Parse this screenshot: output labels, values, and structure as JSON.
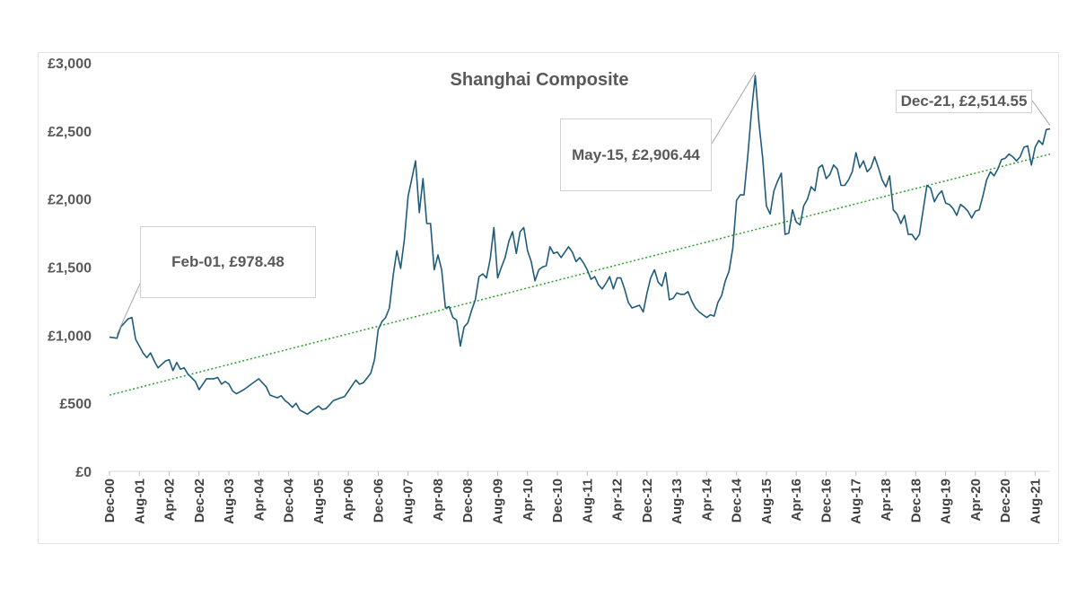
{
  "chart_data": {
    "type": "line",
    "title": "Shanghai Composite",
    "xlabel": "",
    "ylabel": "",
    "ylim": [
      0,
      3000
    ],
    "y_ticks": [
      "£0",
      "£500",
      "£1,000",
      "£1,500",
      "£2,000",
      "£2,500",
      "£3,000"
    ],
    "x_ticks": [
      "Dec-00",
      "Aug-01",
      "Apr-02",
      "Dec-02",
      "Aug-03",
      "Apr-04",
      "Dec-04",
      "Aug-05",
      "Apr-06",
      "Dec-06",
      "Aug-07",
      "Apr-08",
      "Dec-08",
      "Aug-09",
      "Apr-10",
      "Dec-10",
      "Aug-11",
      "Apr-12",
      "Dec-12",
      "Aug-13",
      "Apr-14",
      "Dec-14",
      "Aug-15",
      "Apr-16",
      "Dec-16",
      "Aug-17",
      "Apr-18",
      "Dec-18",
      "Aug-19",
      "Apr-20",
      "Dec-20",
      "Aug-21"
    ],
    "grid": false,
    "legend": "none",
    "series_color": "#1f5c7a",
    "trend_color": "#2ca02c",
    "trendline": {
      "start_value": 560,
      "end_value": 2330,
      "style": "dotted"
    },
    "x_start": "Dec-00",
    "x_end": "Dec-21",
    "anchors": [
      [
        "Dec-00",
        985
      ],
      [
        "Feb-01",
        978
      ],
      [
        "Mar-01",
        1060
      ],
      [
        "May-01",
        1120
      ],
      [
        "Jun-01",
        1130
      ],
      [
        "Jul-01",
        970
      ],
      [
        "Sep-01",
        870
      ],
      [
        "Oct-01",
        835
      ],
      [
        "Nov-01",
        870
      ],
      [
        "Dec-01",
        810
      ],
      [
        "Jan-02",
        760
      ],
      [
        "Mar-02",
        810
      ],
      [
        "Apr-02",
        820
      ],
      [
        "May-02",
        740
      ],
      [
        "Jun-02",
        800
      ],
      [
        "Jul-02",
        750
      ],
      [
        "Aug-02",
        760
      ],
      [
        "Sep-02",
        715
      ],
      [
        "Nov-02",
        660
      ],
      [
        "Dec-02",
        600
      ],
      [
        "Feb-03",
        680
      ],
      [
        "Apr-03",
        680
      ],
      [
        "May-03",
        690
      ],
      [
        "Jun-03",
        640
      ],
      [
        "Jul-03",
        660
      ],
      [
        "Aug-03",
        640
      ],
      [
        "Sep-03",
        590
      ],
      [
        "Oct-03",
        570
      ],
      [
        "Dec-03",
        600
      ],
      [
        "Apr-04",
        680
      ],
      [
        "Jun-04",
        620
      ],
      [
        "Jul-04",
        560
      ],
      [
        "Sep-04",
        540
      ],
      [
        "Oct-04",
        555
      ],
      [
        "Nov-04",
        520
      ],
      [
        "Dec-04",
        500
      ],
      [
        "Jan-05",
        470
      ],
      [
        "Feb-05",
        500
      ],
      [
        "Mar-05",
        450
      ],
      [
        "May-05",
        420
      ],
      [
        "Jun-05",
        440
      ],
      [
        "Aug-05",
        480
      ],
      [
        "Sep-05",
        455
      ],
      [
        "Oct-05",
        460
      ],
      [
        "Dec-05",
        520
      ],
      [
        "Mar-06",
        550
      ],
      [
        "Apr-06",
        590
      ],
      [
        "Jun-06",
        670
      ],
      [
        "Jul-06",
        640
      ],
      [
        "Aug-06",
        650
      ],
      [
        "Oct-06",
        720
      ],
      [
        "Nov-06",
        820
      ],
      [
        "Dec-06",
        1040
      ],
      [
        "Jan-07",
        1100
      ],
      [
        "Feb-07",
        1130
      ],
      [
        "Mar-07",
        1200
      ],
      [
        "Apr-07",
        1440
      ],
      [
        "May-07",
        1620
      ],
      [
        "Jun-07",
        1490
      ],
      [
        "Jul-07",
        1700
      ],
      [
        "Aug-07",
        2020
      ],
      [
        "Sep-07",
        2150
      ],
      [
        "Oct-07",
        2280
      ],
      [
        "Nov-07",
        1900
      ],
      [
        "Dec-07",
        2150
      ],
      [
        "Jan-08",
        1820
      ],
      [
        "Feb-08",
        1820
      ],
      [
        "Mar-08",
        1480
      ],
      [
        "Apr-08",
        1590
      ],
      [
        "May-08",
        1480
      ],
      [
        "Jun-08",
        1200
      ],
      [
        "Jul-08",
        1210
      ],
      [
        "Aug-08",
        1130
      ],
      [
        "Sep-08",
        1110
      ],
      [
        "Oct-08",
        920
      ],
      [
        "Nov-08",
        1060
      ],
      [
        "Dec-08",
        1090
      ],
      [
        "Jan-09",
        1180
      ],
      [
        "Feb-09",
        1260
      ],
      [
        "Mar-09",
        1430
      ],
      [
        "Apr-09",
        1450
      ],
      [
        "May-09",
        1420
      ],
      [
        "Jun-09",
        1560
      ],
      [
        "Jul-09",
        1790
      ],
      [
        "Aug-09",
        1420
      ],
      [
        "Sep-09",
        1500
      ],
      [
        "Oct-09",
        1570
      ],
      [
        "Nov-09",
        1690
      ],
      [
        "Dec-09",
        1760
      ],
      [
        "Jan-10",
        1600
      ],
      [
        "Feb-10",
        1760
      ],
      [
        "Mar-10",
        1790
      ],
      [
        "Apr-10",
        1620
      ],
      [
        "May-10",
        1540
      ],
      [
        "Jun-10",
        1400
      ],
      [
        "Jul-10",
        1480
      ],
      [
        "Aug-10",
        1500
      ],
      [
        "Sep-10",
        1510
      ],
      [
        "Oct-10",
        1650
      ],
      [
        "Nov-10",
        1600
      ],
      [
        "Dec-10",
        1610
      ],
      [
        "Jan-11",
        1570
      ],
      [
        "Feb-11",
        1610
      ],
      [
        "Mar-11",
        1650
      ],
      [
        "Apr-11",
        1610
      ],
      [
        "May-11",
        1540
      ],
      [
        "Jun-11",
        1570
      ],
      [
        "Jul-11",
        1530
      ],
      [
        "Aug-11",
        1480
      ],
      [
        "Sep-11",
        1410
      ],
      [
        "Oct-11",
        1430
      ],
      [
        "Nov-11",
        1370
      ],
      [
        "Dec-11",
        1340
      ],
      [
        "Jan-12",
        1380
      ],
      [
        "Feb-12",
        1430
      ],
      [
        "Mar-12",
        1340
      ],
      [
        "Apr-12",
        1420
      ],
      [
        "May-12",
        1420
      ],
      [
        "Jun-12",
        1340
      ],
      [
        "Jul-12",
        1240
      ],
      [
        "Aug-12",
        1200
      ],
      [
        "Sep-12",
        1210
      ],
      [
        "Oct-12",
        1220
      ],
      [
        "Nov-12",
        1170
      ],
      [
        "Dec-12",
        1310
      ],
      [
        "Jan-13",
        1420
      ],
      [
        "Feb-13",
        1480
      ],
      [
        "Mar-13",
        1390
      ],
      [
        "Apr-13",
        1360
      ],
      [
        "May-13",
        1460
      ],
      [
        "Jun-13",
        1260
      ],
      [
        "Jul-13",
        1270
      ],
      [
        "Aug-13",
        1310
      ],
      [
        "Sep-13",
        1300
      ],
      [
        "Oct-13",
        1300
      ],
      [
        "Nov-13",
        1320
      ],
      [
        "Dec-13",
        1250
      ],
      [
        "Jan-14",
        1200
      ],
      [
        "Feb-14",
        1170
      ],
      [
        "Mar-14",
        1150
      ],
      [
        "Apr-14",
        1130
      ],
      [
        "May-14",
        1150
      ],
      [
        "Jun-14",
        1140
      ],
      [
        "Jul-14",
        1240
      ],
      [
        "Aug-14",
        1290
      ],
      [
        "Sep-14",
        1400
      ],
      [
        "Oct-14",
        1470
      ],
      [
        "Nov-14",
        1640
      ],
      [
        "Dec-14",
        1990
      ],
      [
        "Jan-15",
        2030
      ],
      [
        "Feb-15",
        2030
      ],
      [
        "Mar-15",
        2310
      ],
      [
        "Apr-15",
        2640
      ],
      [
        "May-15",
        2906.44
      ],
      [
        "Jun-15",
        2560
      ],
      [
        "Jul-15",
        2300
      ],
      [
        "Aug-15",
        1950
      ],
      [
        "Sep-15",
        1890
      ],
      [
        "Oct-15",
        2060
      ],
      [
        "Nov-15",
        2130
      ],
      [
        "Dec-15",
        2190
      ],
      [
        "Jan-16",
        1740
      ],
      [
        "Feb-16",
        1750
      ],
      [
        "Mar-16",
        1920
      ],
      [
        "Apr-16",
        1830
      ],
      [
        "May-16",
        1810
      ],
      [
        "Jun-16",
        1950
      ],
      [
        "Jul-16",
        2000
      ],
      [
        "Aug-16",
        2090
      ],
      [
        "Sep-16",
        2060
      ],
      [
        "Oct-16",
        2230
      ],
      [
        "Nov-16",
        2250
      ],
      [
        "Dec-16",
        2150
      ],
      [
        "Jan-17",
        2180
      ],
      [
        "Feb-17",
        2250
      ],
      [
        "Mar-17",
        2220
      ],
      [
        "Apr-17",
        2100
      ],
      [
        "May-17",
        2100
      ],
      [
        "Jun-17",
        2140
      ],
      [
        "Jul-17",
        2200
      ],
      [
        "Aug-17",
        2340
      ],
      [
        "Sep-17",
        2230
      ],
      [
        "Oct-17",
        2280
      ],
      [
        "Nov-17",
        2200
      ],
      [
        "Dec-17",
        2230
      ],
      [
        "Jan-18",
        2310
      ],
      [
        "Feb-18",
        2230
      ],
      [
        "Mar-18",
        2140
      ],
      [
        "Apr-18",
        2090
      ],
      [
        "May-18",
        2170
      ],
      [
        "Jun-18",
        1920
      ],
      [
        "Jul-18",
        1890
      ],
      [
        "Aug-18",
        1820
      ],
      [
        "Sep-18",
        1880
      ],
      [
        "Oct-18",
        1740
      ],
      [
        "Nov-18",
        1740
      ],
      [
        "Dec-18",
        1700
      ],
      [
        "Jan-19",
        1740
      ],
      [
        "Feb-19",
        1920
      ],
      [
        "Mar-19",
        2100
      ],
      [
        "Apr-19",
        2080
      ],
      [
        "May-19",
        1980
      ],
      [
        "Jun-19",
        2030
      ],
      [
        "Jul-19",
        2060
      ],
      [
        "Aug-19",
        1970
      ],
      [
        "Sep-19",
        1960
      ],
      [
        "Oct-19",
        1930
      ],
      [
        "Nov-19",
        1880
      ],
      [
        "Dec-19",
        1960
      ],
      [
        "Jan-20",
        1940
      ],
      [
        "Feb-20",
        1910
      ],
      [
        "Mar-20",
        1860
      ],
      [
        "Apr-20",
        1910
      ],
      [
        "May-20",
        1920
      ],
      [
        "Jun-20",
        2020
      ],
      [
        "Jul-20",
        2140
      ],
      [
        "Aug-20",
        2200
      ],
      [
        "Sep-20",
        2170
      ],
      [
        "Oct-20",
        2220
      ],
      [
        "Nov-20",
        2290
      ],
      [
        "Dec-20",
        2300
      ],
      [
        "Jan-21",
        2330
      ],
      [
        "Feb-21",
        2310
      ],
      [
        "Mar-21",
        2280
      ],
      [
        "Apr-21",
        2310
      ],
      [
        "May-21",
        2380
      ],
      [
        "Jun-21",
        2390
      ],
      [
        "Jul-21",
        2250
      ],
      [
        "Aug-21",
        2380
      ],
      [
        "Sep-21",
        2430
      ],
      [
        "Oct-21",
        2400
      ],
      [
        "Nov-21",
        2510
      ],
      [
        "Dec-21",
        2514.55
      ]
    ],
    "annotations": [
      {
        "label": "Feb-01, £978.48",
        "x": "Feb-01",
        "y": 978.48
      },
      {
        "label": "May-15, £2,906.44",
        "x": "May-15",
        "y": 2906.44
      },
      {
        "label": "Dec-21, £2,514.55",
        "x": "Dec-21",
        "y": 2514.55
      }
    ]
  }
}
